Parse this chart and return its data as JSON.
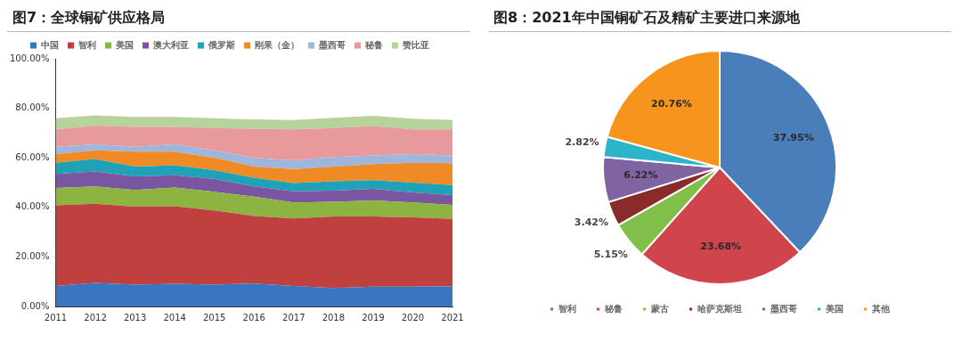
{
  "chart_data": [
    {
      "type": "area",
      "title": "图7：全球铜矿供应格局",
      "stacked": true,
      "legend": "top",
      "categories": [
        "2011",
        "2012",
        "2013",
        "2014",
        "2015",
        "2016",
        "2017",
        "2018",
        "2019",
        "2020",
        "2021"
      ],
      "ylim": [
        0,
        100
      ],
      "yticks": [
        {
          "value": 0,
          "label": "0.00%"
        },
        {
          "value": 20,
          "label": "20.00%"
        },
        {
          "value": 40,
          "label": "40.00%"
        },
        {
          "value": 60,
          "label": "60.00%"
        },
        {
          "value": 80,
          "label": "80.00%"
        },
        {
          "value": 100,
          "label": "100.00%"
        }
      ],
      "series": [
        {
          "name": "中国",
          "color": "#3a75c0",
          "values": [
            8.3,
            9.5,
            8.8,
            9.2,
            8.8,
            9.3,
            8.3,
            7.5,
            8,
            8,
            8.2
          ]
        },
        {
          "name": "智利",
          "color": "#c0403f",
          "values": [
            32.5,
            32,
            31.5,
            31.3,
            30,
            27.2,
            27.2,
            28.8,
            28.3,
            28,
            27.1
          ]
        },
        {
          "name": "美国",
          "color": "#8db440",
          "values": [
            7,
            7,
            6.7,
            7.5,
            7.5,
            7.8,
            6.5,
            6,
            6.5,
            6,
            5.7
          ]
        },
        {
          "name": "澳大利亚",
          "color": "#7a55a0",
          "values": [
            5.7,
            6,
            5.5,
            5,
            5.2,
            4.2,
            4.5,
            4.5,
            4.7,
            4,
            4
          ]
        },
        {
          "name": "俄罗斯",
          "color": "#1fa2b8",
          "values": [
            4.5,
            5,
            4,
            4,
            3.5,
            3.5,
            3.3,
            3.7,
            3.5,
            4,
            4
          ]
        },
        {
          "name": "刚果（金）",
          "color": "#f08a24",
          "values": [
            3.5,
            3.5,
            6,
            5.5,
            5,
            4.5,
            5.7,
            6,
            6.5,
            8,
            8.8
          ]
        },
        {
          "name": "墨西哥",
          "color": "#9fb6dc",
          "values": [
            3,
            2.5,
            2,
            3,
            3,
            3.5,
            3.5,
            3.8,
            3.5,
            3.5,
            3.2
          ]
        },
        {
          "name": "秘鲁",
          "color": "#e8999b",
          "values": [
            7,
            7.5,
            8,
            7,
            9,
            11.8,
            12.5,
            11.7,
            11.8,
            10,
            10.5
          ]
        },
        {
          "name": "赞比亚",
          "color": "#b5d39a",
          "values": [
            4.5,
            4.2,
            4,
            4,
            4,
            3.7,
            3.8,
            4.2,
            4.2,
            4.3,
            3.8
          ]
        }
      ]
    },
    {
      "type": "pie",
      "title": "图8：2021年中国铜矿石及精矿主要进口来源地",
      "legend": "bottom",
      "categories": [
        "智利",
        "秘鲁",
        "蒙古",
        "哈萨克斯坦",
        "墨西哥",
        "美国",
        "其他"
      ],
      "values": [
        37.95,
        23.68,
        5.15,
        3.42,
        6.22,
        2.82,
        20.76
      ],
      "colors": [
        "#4a7ebb",
        "#d0454c",
        "#7fbf4a",
        "#8b2a2a",
        "#8064a2",
        "#2cb5c9",
        "#f7941d"
      ],
      "value_labels": [
        "37.95%",
        "23.68%",
        "5.15%",
        "3.42%",
        "6.22%",
        "2.82%",
        "20.76%"
      ]
    }
  ]
}
